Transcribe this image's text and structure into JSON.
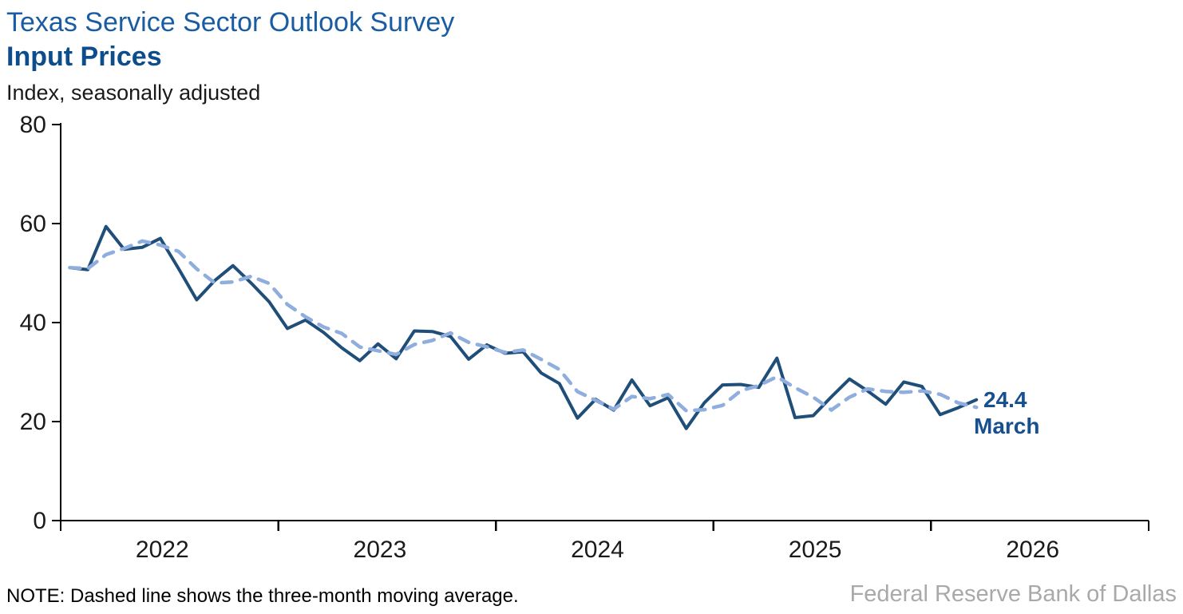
{
  "header": {
    "title": "Texas Service Sector Outlook Survey",
    "subtitle": "Input Prices",
    "units_label": "Index,  seasonally adjusted"
  },
  "chart_data": {
    "type": "line",
    "title": "Texas Service Sector Outlook Survey",
    "subtitle": "Input Prices",
    "ylabel": "Index, seasonally adjusted",
    "ylim": [
      0,
      80
    ],
    "yticks": [
      0,
      20,
      40,
      60,
      80
    ],
    "x_tick_labels": [
      "2022",
      "2023",
      "2024",
      "2025",
      "2026"
    ],
    "x_axis_span_months": 60,
    "start_month": "2022-01",
    "end_month": "2026-03",
    "grid": "off",
    "legend": "none",
    "series": [
      {
        "name": "Input Prices index (monthly)",
        "style": "solid",
        "color": "#1F4E79",
        "values": [
          51.1,
          50.7,
          59.4,
          54.8,
          55.2,
          57.0,
          50.9,
          44.6,
          48.5,
          51.5,
          48.0,
          44.2,
          38.8,
          40.5,
          38.0,
          34.9,
          32.3,
          35.7,
          32.7,
          38.3,
          38.2,
          37.2,
          32.6,
          35.5,
          33.8,
          34.1,
          29.8,
          27.7,
          20.7,
          24.5,
          22.3,
          28.4,
          23.2,
          24.8,
          18.6,
          23.8,
          27.4,
          27.5,
          26.9,
          32.8,
          20.8,
          21.2,
          25.0,
          28.6,
          26.2,
          23.5,
          28.0,
          27.1,
          21.4,
          22.8,
          24.4
        ]
      },
      {
        "name": "Three-month moving average",
        "style": "dashed",
        "color": "#8FAEDD",
        "derived_from": "Input Prices index (monthly)",
        "derivation": "trailing 3-month moving average"
      }
    ],
    "annotation": {
      "value_label": "24.4",
      "month_label": "March"
    }
  },
  "note": "NOTE: Dashed line shows the three-month moving average.",
  "footer": "Federal Reserve Bank of Dallas",
  "colors": {
    "monthly_line": "#1F4E79",
    "moving_average_line": "#8FAEDD",
    "annotation_text": "#17508F",
    "title_text": "#1A5CA3",
    "subtitle_text": "#0D4D8C",
    "axis": "#000000",
    "source_text": "#A9A9A9"
  }
}
